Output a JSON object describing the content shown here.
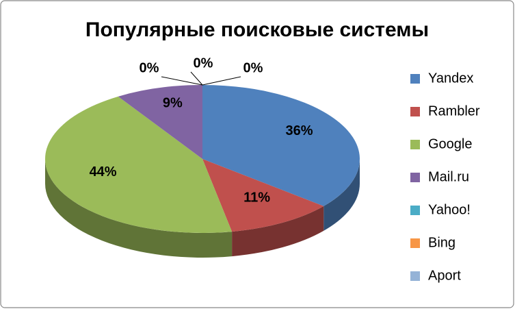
{
  "chart_data": {
    "type": "pie3d",
    "title": "Популярные поисковые системы",
    "categories": [
      "Yandex",
      " Rambler",
      "Google",
      " Mail.ru",
      "Yahoo!",
      "Bing",
      "Aport"
    ],
    "values": [
      36,
      11,
      44,
      9,
      0,
      0,
      0
    ],
    "value_labels": [
      "36%",
      "11%",
      "44%",
      "9%",
      "0%",
      "0%",
      "0%"
    ],
    "colors": [
      "#4f81bd",
      "#c0504d",
      "#9bbb59",
      "#8064a2",
      "#4bacc6",
      "#f79646",
      "#95b3d7"
    ],
    "legend": "right"
  }
}
